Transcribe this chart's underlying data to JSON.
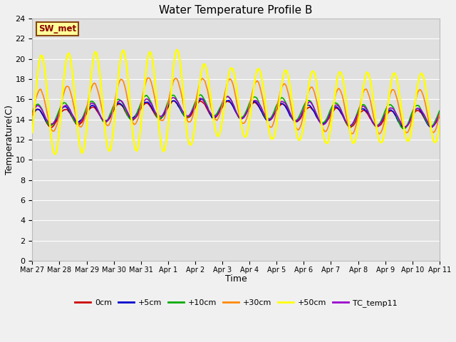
{
  "title": "Water Temperature Profile B",
  "xlabel": "Time",
  "ylabel": "Temperature(C)",
  "ylim": [
    0,
    24
  ],
  "yticks": [
    0,
    2,
    4,
    6,
    8,
    10,
    12,
    14,
    16,
    18,
    20,
    22,
    24
  ],
  "fig_bg_color": "#f0f0f0",
  "plot_bg_color": "#e0e0e0",
  "grid_color": "#ffffff",
  "annotation_text": "SW_met",
  "annotation_bg": "#ffff99",
  "annotation_border": "#8B4513",
  "annotation_text_color": "#8B0000",
  "series": {
    "0cm": {
      "color": "#cc0000",
      "lw": 1.2
    },
    "+5cm": {
      "color": "#0000cc",
      "lw": 1.2
    },
    "+10cm": {
      "color": "#00aa00",
      "lw": 1.2
    },
    "+30cm": {
      "color": "#ff8800",
      "lw": 1.2
    },
    "+50cm": {
      "color": "#ffff00",
      "lw": 1.8
    },
    "TC_temp11": {
      "color": "#9900cc",
      "lw": 1.2
    }
  },
  "xticklabels": [
    "Mar 27",
    "Mar 28",
    "Mar 29",
    "Mar 30",
    "Mar 31",
    "Apr 1",
    "Apr 2",
    "Apr 3",
    "Apr 4",
    "Apr 5",
    "Apr 6",
    "Apr 7",
    "Apr 8",
    "Apr 9",
    "Apr 10",
    "Apr 11"
  ],
  "num_points": 336,
  "days": 15
}
